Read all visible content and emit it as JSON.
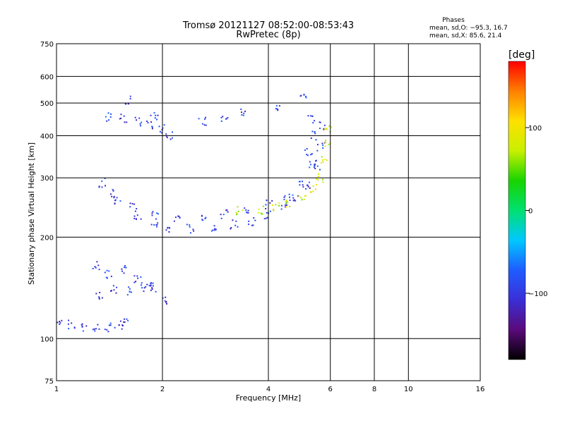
{
  "chart_data": {
    "type": "scatter",
    "title": "Tromsø 20121127 08:52:00-08:53:43",
    "subtitle": "RwPretec (8p)",
    "xlabel": "Frequency [MHz]",
    "ylabel": "Stationary phase Virtual Height [km]",
    "x_scale": "log",
    "y_scale": "log",
    "xlim": [
      1,
      16
    ],
    "ylim": [
      75,
      750
    ],
    "x_ticks": [
      1,
      2,
      4,
      6,
      8,
      10,
      16
    ],
    "x_tick_labels": [
      "1",
      "2",
      "4",
      "6",
      "8",
      "10",
      "16"
    ],
    "y_ticks": [
      75,
      100,
      200,
      300,
      400,
      500,
      600,
      750
    ],
    "y_tick_labels": [
      "75",
      "100",
      "200",
      "300",
      "400",
      "500",
      "600",
      "750"
    ],
    "grid": true,
    "legend_box": {
      "title": "Phases",
      "line1": "mean, sd,O: −95.3, 16.7",
      "line2": "mean, sd,X:  85.6, 21.4"
    },
    "colorbar": {
      "unit_label": "[deg]",
      "ticks": [
        100,
        0,
        -100
      ],
      "tick_labels": [
        "100",
        "0",
        "−100"
      ],
      "range": [
        -180,
        180
      ],
      "stops": [
        "#000000",
        "#5a0a7a",
        "#3a2fd6",
        "#1f5cff",
        "#00c8ff",
        "#00e070",
        "#19d400",
        "#c8f000",
        "#ffe000",
        "#ff8000",
        "#ff0000"
      ]
    },
    "series": [
      {
        "mode": "O",
        "phase_mean": -95.3,
        "points_path": [
          [
            1.02,
            112
          ],
          [
            1.1,
            110
          ],
          [
            1.2,
            108
          ],
          [
            1.3,
            107
          ],
          [
            1.4,
            108
          ],
          [
            1.5,
            110
          ],
          [
            1.58,
            112
          ],
          [
            1.33,
            135
          ],
          [
            1.45,
            140
          ],
          [
            1.6,
            138
          ],
          [
            1.75,
            142
          ],
          [
            1.9,
            140
          ],
          [
            2.05,
            130
          ],
          [
            1.3,
            165
          ],
          [
            1.4,
            155
          ],
          [
            1.55,
            160
          ],
          [
            1.7,
            150
          ],
          [
            1.85,
            145
          ],
          [
            1.35,
            290
          ],
          [
            1.5,
            255
          ],
          [
            1.7,
            232
          ],
          [
            1.9,
            218
          ],
          [
            2.1,
            210
          ],
          [
            2.4,
            212
          ],
          [
            2.8,
            215
          ],
          [
            3.2,
            218
          ],
          [
            3.6,
            222
          ],
          [
            4.0,
            232
          ],
          [
            4.4,
            245
          ],
          [
            4.8,
            262
          ],
          [
            5.2,
            285
          ],
          [
            5.5,
            320
          ],
          [
            5.65,
            370
          ],
          [
            5.7,
            430
          ],
          [
            1.45,
            270
          ],
          [
            1.65,
            245
          ],
          [
            1.9,
            232
          ],
          [
            2.2,
            228
          ],
          [
            2.6,
            230
          ],
          [
            3.0,
            234
          ],
          [
            3.5,
            240
          ],
          [
            4.0,
            250
          ],
          [
            4.5,
            265
          ],
          [
            5.0,
            290
          ],
          [
            5.35,
            330
          ],
          [
            1.4,
            455
          ],
          [
            1.55,
            450
          ],
          [
            1.7,
            440
          ],
          [
            1.85,
            430
          ],
          [
            2.0,
            420
          ],
          [
            2.1,
            400
          ],
          [
            2.6,
            440
          ],
          [
            3.0,
            445
          ],
          [
            3.4,
            470
          ],
          [
            4.3,
            490
          ],
          [
            5.0,
            520
          ],
          [
            1.6,
            510
          ],
          [
            1.9,
            460
          ],
          [
            5.3,
            450
          ],
          [
            5.4,
            400
          ],
          [
            5.2,
            360
          ]
        ]
      },
      {
        "mode": "X",
        "phase_mean": 85.6,
        "points_path": [
          [
            3.3,
            240
          ],
          [
            3.8,
            240
          ],
          [
            4.2,
            245
          ],
          [
            4.6,
            250
          ],
          [
            5.0,
            262
          ],
          [
            5.4,
            280
          ],
          [
            5.6,
            300
          ],
          [
            5.75,
            340
          ],
          [
            5.85,
            380
          ],
          [
            5.9,
            420
          ]
        ]
      }
    ]
  }
}
